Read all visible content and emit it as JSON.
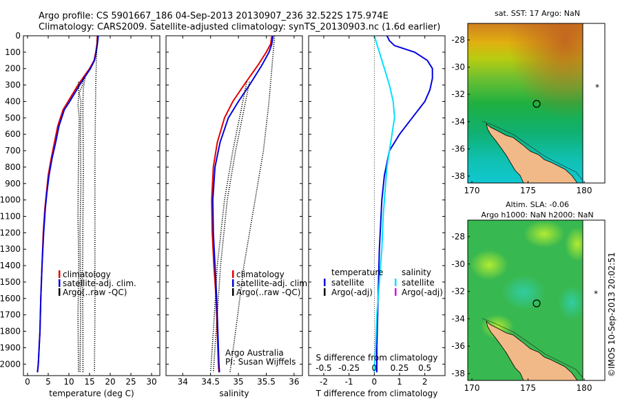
{
  "header": {
    "line1": "Argo profile: CS 5901667_186 04-Sep-2013 20130907_236 32.522S 175.974E",
    "line2": "Climatology: CARS2009. Satellite-adjusted climatology: synTS_20130903.nc (1.6d earlier)"
  },
  "colors": {
    "climatology": "#e00000",
    "satellite": "#0000e0",
    "argo": "#000000",
    "satellite_salinity": "#00e0ff",
    "argo_adj_salinity": "#e000e0"
  },
  "chart_data": [
    {
      "type": "line",
      "panel": "temperature",
      "xlabel": "temperature (deg C)",
      "ylabel": "",
      "xlim": [
        -1,
        32
      ],
      "ylim": [
        2070,
        0
      ],
      "xticks": [
        "0",
        "5",
        "10",
        "15",
        "20",
        "25",
        "30"
      ],
      "xtick_values": [
        0,
        5,
        10,
        15,
        20,
        25,
        30
      ],
      "yticks": [
        "0",
        "100",
        "200",
        "300",
        "400",
        "500",
        "600",
        "700",
        "800",
        "900",
        "1000",
        "1100",
        "1200",
        "1300",
        "1400",
        "1500",
        "1600",
        "1700",
        "1800",
        "1900",
        "2000"
      ],
      "ytick_values": [
        0,
        100,
        200,
        300,
        400,
        500,
        600,
        700,
        800,
        900,
        1000,
        1100,
        1200,
        1300,
        1400,
        1500,
        1600,
        1700,
        1800,
        1900,
        2000
      ],
      "legend": [
        "climatology",
        "satellite-adj. clim.",
        "Argo(..raw -QC)"
      ],
      "series": [
        {
          "name": "climatology",
          "x": [
            16.9,
            16.8,
            16.5,
            16.1,
            15.0,
            12.2,
            9.8,
            8.6,
            7.3,
            6.5,
            5.7,
            5.0,
            4.6,
            4.2,
            3.8,
            3.5,
            3.2,
            3.0,
            2.6,
            2.4
          ],
          "y": [
            0,
            50,
            100,
            150,
            200,
            300,
            400,
            450,
            550,
            650,
            750,
            850,
            950,
            1050,
            1200,
            1400,
            1600,
            1800,
            2000,
            2050
          ]
        },
        {
          "name": "satellite-adj. clim.",
          "x": [
            17.1,
            16.9,
            16.6,
            16.2,
            15.2,
            12.6,
            10.2,
            8.9,
            7.6,
            6.8,
            5.9,
            5.2,
            4.7,
            4.3,
            3.9,
            3.5,
            3.2,
            3.0,
            2.6,
            2.4
          ],
          "y": [
            0,
            50,
            100,
            150,
            200,
            300,
            400,
            450,
            550,
            650,
            750,
            850,
            950,
            1050,
            1200,
            1400,
            1600,
            1800,
            2000,
            2050
          ]
        },
        {
          "name": "Argo(..raw -QC)",
          "x": [
            16.9,
            16.7,
            16.6,
            16.5,
            16.4,
            16.3,
            16.3,
            16.3,
            16.3,
            16.2,
            16.2
          ],
          "y": [
            0,
            100,
            200,
            300,
            500,
            800,
            1100,
            1400,
            1700,
            2000,
            2050
          ]
        },
        {
          "name": "Argo profile dots",
          "x": [
            13.6,
            13.3,
            12.5,
            12.9,
            12.8,
            12.9,
            12.7,
            12.8,
            12.8,
            12.7
          ],
          "y": [
            250,
            300,
            350,
            400,
            600,
            900,
            1200,
            1500,
            1800,
            2050
          ]
        },
        {
          "name": "Argo profile dots 2",
          "x": [
            12.3,
            12.4,
            12.2,
            12.5,
            12.3,
            12.2,
            12.4,
            12.2,
            12.3,
            12.3
          ],
          "y": [
            280,
            350,
            420,
            500,
            800,
            1100,
            1400,
            1700,
            2000,
            2050
          ]
        },
        {
          "name": "Argo profile dots 3",
          "x": [
            13.9,
            13.5,
            13.4,
            13.4,
            13.5,
            13.4,
            13.3,
            13.4,
            13.4
          ],
          "y": [
            260,
            320,
            400,
            500,
            800,
            1100,
            1500,
            1800,
            2050
          ]
        }
      ]
    },
    {
      "type": "line",
      "panel": "salinity",
      "xlabel": "salinity",
      "ylabel": "",
      "xlim": [
        33.7,
        36.15
      ],
      "ylim": [
        2070,
        0
      ],
      "xticks": [
        "34",
        "34.5",
        "35",
        "35.5",
        "36"
      ],
      "xtick_values": [
        34,
        34.5,
        35,
        35.5,
        36
      ],
      "legend": [
        "climatology",
        "satellite-adj. clim.",
        "Argo(..raw -QC)"
      ],
      "annotation": [
        "Argo Australia",
        "PI: Susan Wijffels"
      ],
      "series": [
        {
          "name": "climatology",
          "x": [
            35.6,
            35.58,
            35.5,
            35.35,
            35.1,
            34.9,
            34.75,
            34.62,
            34.55,
            34.52,
            34.53,
            34.56,
            34.6,
            34.62,
            34.64,
            34.65
          ],
          "y": [
            0,
            50,
            100,
            180,
            300,
            400,
            500,
            650,
            800,
            1000,
            1200,
            1400,
            1600,
            1800,
            2000,
            2050
          ]
        },
        {
          "name": "satellite-adj. clim.",
          "x": [
            35.62,
            35.6,
            35.55,
            35.42,
            35.2,
            35.0,
            34.82,
            34.67,
            34.58,
            34.54,
            34.55,
            34.58,
            34.61,
            34.63,
            34.65,
            34.66
          ],
          "y": [
            0,
            50,
            100,
            180,
            300,
            400,
            500,
            650,
            800,
            1000,
            1200,
            1400,
            1600,
            1800,
            2000,
            2050
          ]
        },
        {
          "name": "Argo(..raw -QC)",
          "x": [
            35.65,
            35.6,
            35.55,
            35.45,
            35.3,
            35.1,
            34.95,
            34.85
          ],
          "y": [
            0,
            200,
            400,
            700,
            1000,
            1400,
            1800,
            2050
          ]
        },
        {
          "name": "Argo profile dots",
          "x": [
            35.2,
            35.1,
            34.95,
            34.8,
            34.68,
            34.6,
            34.55
          ],
          "y": [
            280,
            450,
            700,
            1000,
            1400,
            1800,
            2050
          ]
        },
        {
          "name": "Argo profile dots 2",
          "x": [
            35.15,
            35.05,
            34.9,
            34.75,
            34.62,
            34.55,
            34.5
          ],
          "y": [
            280,
            450,
            700,
            1000,
            1400,
            1800,
            2050
          ]
        }
      ]
    },
    {
      "type": "line",
      "panel": "difference",
      "xlabel": "T difference from climatology",
      "xlabel2": "S difference from climatology",
      "xlim": [
        -2.6,
        2.8
      ],
      "ylim": [
        2070,
        0
      ],
      "xticks": [
        "-2",
        "-1",
        "0",
        "1",
        "2"
      ],
      "xtick_values": [
        -2,
        -1,
        0,
        1,
        2
      ],
      "xticks_s": [
        "-0.5",
        "-0.25",
        "0",
        "0.25",
        "0.5"
      ],
      "xtick_s_values": [
        -2,
        -1,
        0,
        1,
        2
      ],
      "legend_headers": [
        "temperature",
        "salinity"
      ],
      "legend": [
        "satellite",
        "Argo(-adj)",
        "satellite",
        "Argo(-adj)"
      ],
      "series": [
        {
          "name": "temperature satellite",
          "x": [
            0.5,
            0.6,
            0.8,
            1.2,
            1.6,
            2.1,
            2.3,
            2.3,
            2.2,
            2.0,
            1.5,
            1.0,
            0.6,
            0.4,
            0.3,
            0.2,
            0.15,
            0.1,
            0.1
          ],
          "y": [
            0,
            30,
            60,
            80,
            100,
            150,
            200,
            260,
            330,
            400,
            500,
            600,
            700,
            850,
            1000,
            1300,
            1600,
            1900,
            2050
          ]
        },
        {
          "name": "salinity satellite",
          "x": [
            0.0,
            0.2,
            0.4,
            0.6,
            0.75,
            0.8,
            0.7,
            0.6,
            0.5,
            0.45,
            0.4,
            0.35,
            0.3,
            0.2,
            0.1,
            0.05,
            0.0
          ],
          "y": [
            0,
            100,
            200,
            300,
            400,
            500,
            600,
            700,
            800,
            900,
            1000,
            1100,
            1300,
            1500,
            1700,
            1900,
            2050
          ]
        }
      ]
    }
  ],
  "maps": [
    {
      "title": "sat. SST: 17 Argo: NaN",
      "xticks": [
        "170",
        "175",
        "180"
      ],
      "yticks": [
        "-28",
        "-30",
        "-32",
        "-34",
        "-36",
        "-38"
      ]
    },
    {
      "title_line1": "Altim. SLA: -0.06",
      "title_line2": "Argo h1000: NaN h2000: NaN",
      "xticks": [
        "170",
        "175",
        "180"
      ],
      "yticks": [
        "-28",
        "-30",
        "-32",
        "-34",
        "-36",
        "-38"
      ],
      "watermark": "©IMOS 10-Sep-2013 20:02:51"
    }
  ]
}
